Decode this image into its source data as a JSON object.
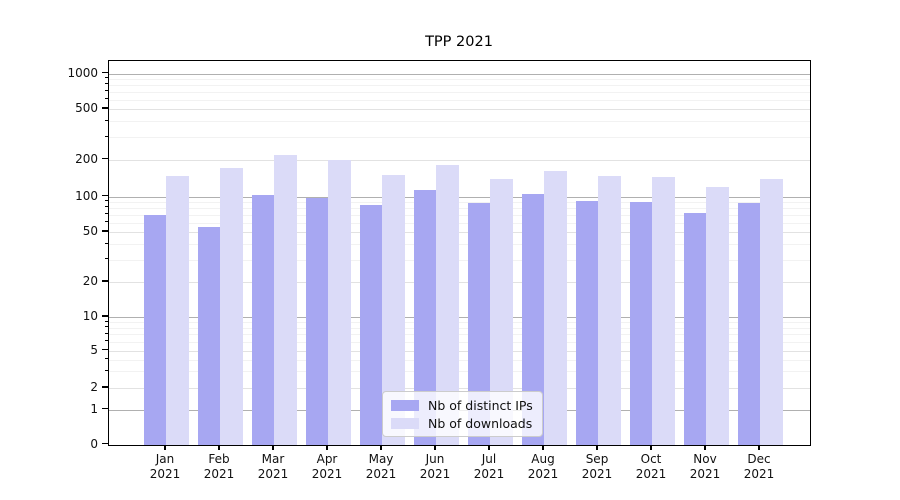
{
  "title": "TPP 2021",
  "chart_data": {
    "type": "bar",
    "title": "TPP 2021",
    "categories": [
      "Jan 2021",
      "Feb 2021",
      "Mar 2021",
      "Apr 2021",
      "May 2021",
      "Jun 2021",
      "Jul 2021",
      "Aug 2021",
      "Sep 2021",
      "Oct 2021",
      "Nov 2021",
      "Dec 2021"
    ],
    "series": [
      {
        "name": "Nb of distinct IPs",
        "color": "#a7a7f2",
        "values": [
          70,
          55,
          103,
          98,
          85,
          112,
          88,
          105,
          92,
          89,
          72,
          88
        ]
      },
      {
        "name": "Nb of downloads",
        "color": "#dbdbf8",
        "values": [
          147,
          172,
          216,
          198,
          149,
          181,
          138,
          162,
          146,
          143,
          120,
          140
        ]
      }
    ],
    "xlabel": "",
    "ylabel": "",
    "y_axis": {
      "scale": "logarithmic-with-zero",
      "tick_values": [
        0,
        1,
        2,
        5,
        10,
        20,
        50,
        100,
        200,
        500,
        1000
      ],
      "range": [
        0,
        1000
      ]
    },
    "grid": "horizontal",
    "legend_position": "bottom-center"
  }
}
